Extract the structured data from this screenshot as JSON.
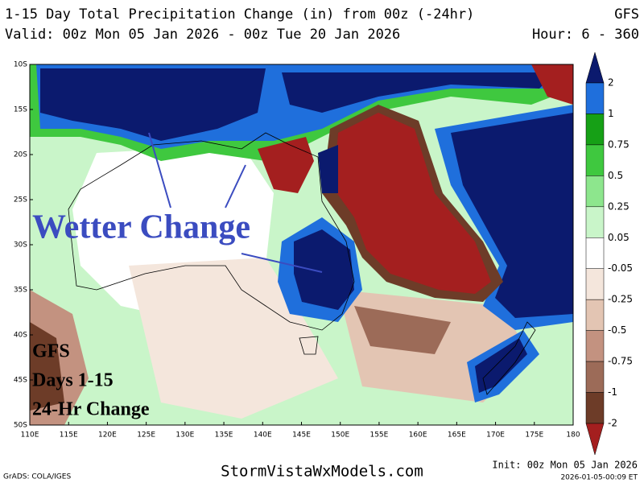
{
  "header": {
    "title": "1-15 Day Total Precipitation Change (in) from 00z (-24hr)",
    "model": "GFS",
    "valid": "Valid: 00z Mon 05 Jan 2026 - 00z Tue 20 Jan 2026",
    "hours": "Hour: 6 - 360"
  },
  "map": {
    "lat_labels": [
      "10S",
      "15S",
      "20S",
      "25S",
      "30S",
      "35S",
      "40S",
      "45S",
      "50S"
    ],
    "lon_labels": [
      "110E",
      "115E",
      "120E",
      "125E",
      "130E",
      "135E",
      "140E",
      "145E",
      "150E",
      "155E",
      "160E",
      "165E",
      "170E",
      "175E",
      "180"
    ]
  },
  "legend": {
    "labels": [
      "2",
      "1",
      "0.75",
      "0.5",
      "0.25",
      "0.05",
      "-0.05",
      "-0.25",
      "-0.5",
      "-0.75",
      "-1",
      "-2"
    ],
    "colors": [
      "#0b1a6e",
      "#1f6fdc",
      "#16a016",
      "#3fc83f",
      "#8de68d",
      "#c9f5c9",
      "#ffffff",
      "#f4e6dc",
      "#e3c5b3",
      "#c39280",
      "#9c6b58",
      "#6d3c28",
      "#a41f1f"
    ]
  },
  "annotations": {
    "wetter": "Wetter Change",
    "model": "GFS",
    "days": "Days 1-15",
    "change": "24-Hr Change"
  },
  "footer": {
    "grads": "GrADS: COLA/IGES",
    "site": "StormVistaWxModels.com",
    "init": "Init: 00z Mon 05 Jan 2026",
    "stamp": "2026-01-05-00:09 ET"
  }
}
